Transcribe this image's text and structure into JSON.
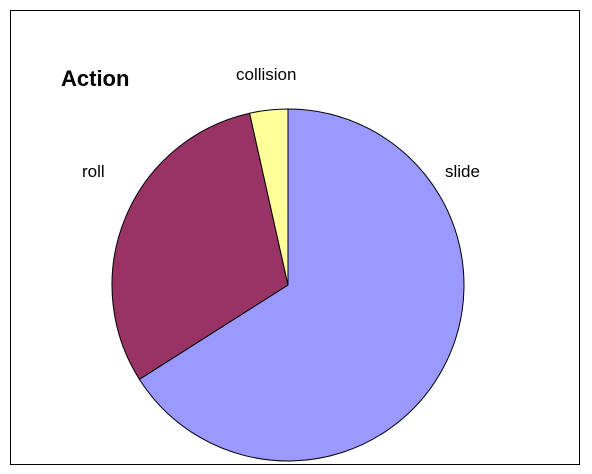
{
  "chart_data": {
    "type": "pie",
    "title": "Action",
    "categories": [
      "slide",
      "roll",
      "collision"
    ],
    "values": [
      66,
      30.5,
      3.5
    ],
    "colors": [
      "#9999ff",
      "#993366",
      "#ffff99"
    ],
    "start": "12 o'clock",
    "direction": "clockwise",
    "legend": "none"
  }
}
